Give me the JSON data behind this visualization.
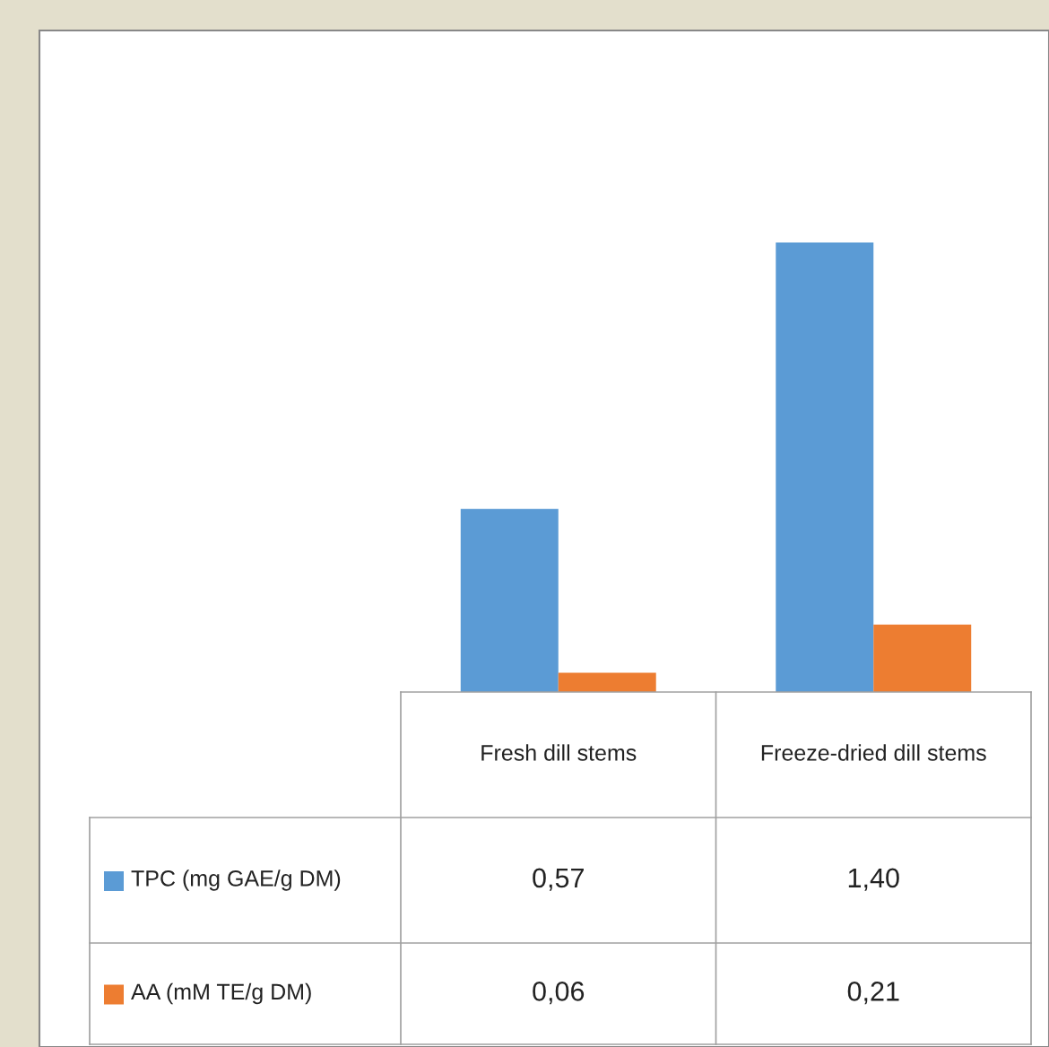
{
  "chart_data": {
    "type": "bar",
    "categories": [
      "Fresh dill stems",
      "Freeze-dried dill stems"
    ],
    "series": [
      {
        "name": "TPC (mg GAE/g DM)",
        "color": "#5b9bd5",
        "values": [
          0.57,
          1.4
        ],
        "value_labels": [
          "0,57",
          "1,40"
        ]
      },
      {
        "name": "AA (mM TE/g DM)",
        "color": "#ed7d31",
        "values": [
          0.06,
          0.21
        ],
        "value_labels": [
          "0,06",
          "0,21"
        ]
      }
    ],
    "legend": "bottom"
  }
}
